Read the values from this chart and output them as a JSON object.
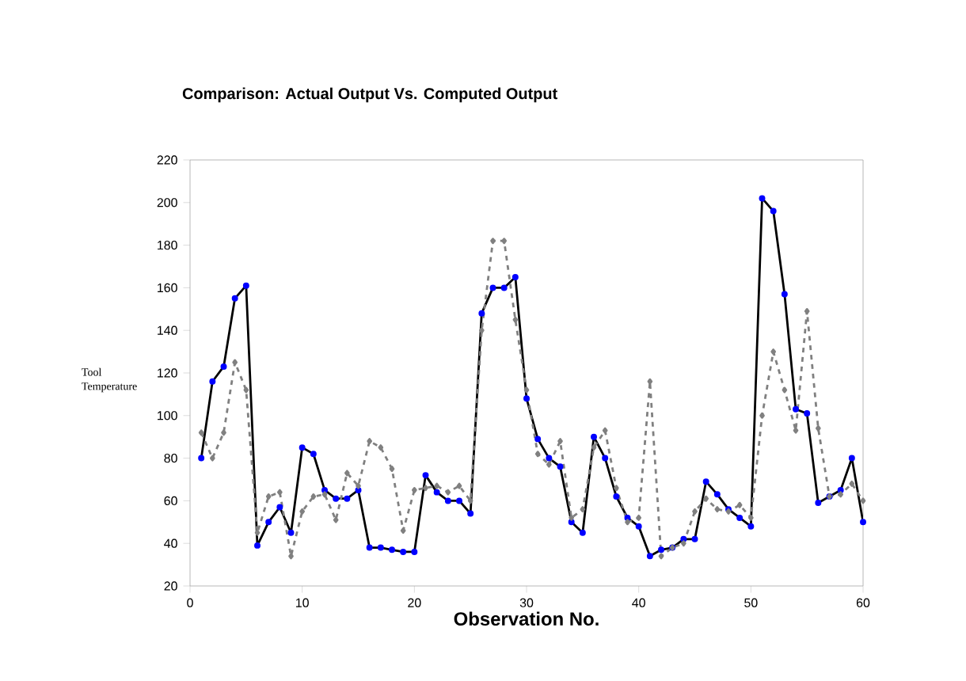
{
  "chart_data": {
    "type": "line",
    "title": "Comparison: Actual Output  Vs. Computed Output",
    "xlabel": "Observation No.",
    "ylabel": "Tool Temperature",
    "x": [
      1,
      2,
      3,
      4,
      5,
      6,
      7,
      8,
      9,
      10,
      11,
      12,
      13,
      14,
      15,
      16,
      17,
      18,
      19,
      20,
      21,
      22,
      23,
      24,
      25,
      26,
      27,
      28,
      29,
      30,
      31,
      32,
      33,
      34,
      35,
      36,
      37,
      38,
      39,
      40,
      41,
      42,
      43,
      44,
      45,
      46,
      47,
      48,
      49,
      50,
      51,
      52,
      53,
      54,
      55,
      56,
      57,
      58,
      59,
      60
    ],
    "series": [
      {
        "color": "#000000",
        "marker": "circle",
        "line_style": "solid",
        "values": [
          80,
          116,
          123,
          155,
          161,
          39,
          50,
          57,
          45,
          85,
          82,
          65,
          61,
          61,
          65,
          38,
          38,
          37,
          36,
          36,
          72,
          64,
          60,
          60,
          54,
          148,
          160,
          160,
          165,
          108,
          89,
          80,
          76,
          50,
          45,
          90,
          80,
          62,
          52,
          48,
          34,
          37,
          38,
          42,
          42,
          69,
          63,
          56,
          52,
          48,
          202,
          196,
          157,
          103,
          101,
          59,
          62,
          65,
          80,
          50
        ]
      },
      {
        "color": "#808080",
        "marker": "diamond",
        "line_style": "dashed",
        "values": [
          92,
          80,
          92,
          125,
          112,
          45,
          62,
          64,
          34,
          55,
          62,
          63,
          51,
          73,
          67,
          88,
          85,
          75,
          46,
          65,
          66,
          67,
          64,
          67,
          60,
          140,
          182,
          182,
          145,
          112,
          82,
          77,
          88,
          52,
          56,
          85,
          93,
          66,
          50,
          52,
          116,
          34,
          38,
          40,
          55,
          61,
          56,
          55,
          58,
          52,
          100,
          130,
          112,
          93,
          149,
          94,
          62,
          63,
          68,
          60
        ]
      }
    ],
    "xlim": [
      0,
      60
    ],
    "ylim": [
      20,
      220
    ],
    "xticks": [
      0,
      10,
      20,
      30,
      40,
      50,
      60
    ],
    "yticks": [
      20,
      40,
      60,
      80,
      100,
      120,
      140,
      160,
      180,
      200,
      220
    ],
    "grid": false
  }
}
